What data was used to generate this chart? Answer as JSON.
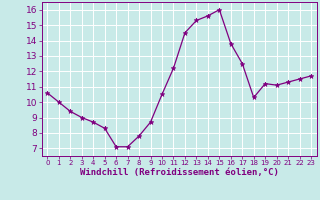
{
  "x": [
    0,
    1,
    2,
    3,
    4,
    5,
    6,
    7,
    8,
    9,
    10,
    11,
    12,
    13,
    14,
    15,
    16,
    17,
    18,
    19,
    20,
    21,
    22,
    23
  ],
  "y": [
    10.6,
    10.0,
    9.4,
    9.0,
    8.7,
    8.3,
    7.1,
    7.1,
    7.8,
    8.7,
    10.5,
    12.2,
    14.5,
    15.3,
    15.6,
    16.0,
    13.8,
    12.5,
    10.3,
    11.2,
    11.1,
    11.3,
    11.5,
    11.7
  ],
  "line_color": "#800080",
  "marker": "*",
  "marker_size": 3.5,
  "bg_color": "#c8eae8",
  "grid_color": "#ffffff",
  "xlabel": "Windchill (Refroidissement éolien,°C)",
  "xlim": [
    -0.5,
    23.5
  ],
  "ylim": [
    6.5,
    16.5
  ],
  "yticks": [
    7,
    8,
    9,
    10,
    11,
    12,
    13,
    14,
    15,
    16
  ],
  "xticks": [
    0,
    1,
    2,
    3,
    4,
    5,
    6,
    7,
    8,
    9,
    10,
    11,
    12,
    13,
    14,
    15,
    16,
    17,
    18,
    19,
    20,
    21,
    22,
    23
  ],
  "label_color": "#800080",
  "tick_color": "#800080",
  "xlabel_fontsize": 6.5,
  "tick_fontsize_x": 5.0,
  "tick_fontsize_y": 6.5,
  "linewidth": 0.9
}
